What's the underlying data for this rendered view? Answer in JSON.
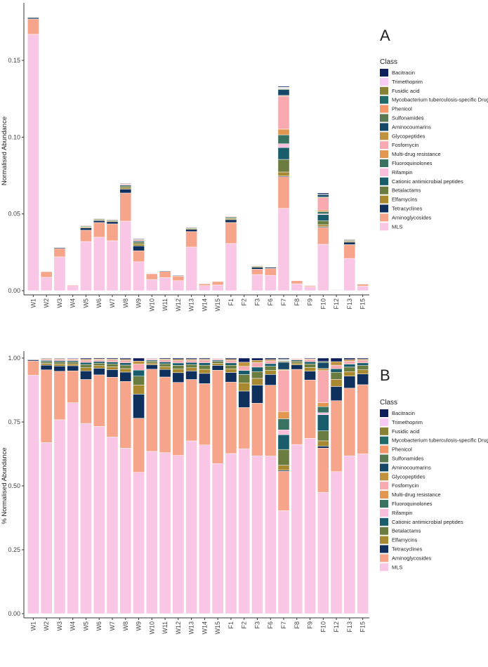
{
  "chart_data": [
    {
      "panel": "A",
      "type": "bar",
      "stacked": true,
      "ylabel": "Normalised Abundance",
      "ylim": [
        0,
        0.18
      ],
      "yticks": [
        "0.00",
        "0.05",
        "0.10",
        "0.15"
      ],
      "ytick_values": [
        0,
        0.05,
        0.1,
        0.15
      ],
      "normalize": false,
      "grid": false,
      "legend_placement": "right"
    },
    {
      "panel": "B",
      "type": "bar",
      "stacked": true,
      "ylabel": "% Normalised Abundance",
      "ylim": [
        0,
        1
      ],
      "yticks": [
        "0.00",
        "0.25",
        "0.50",
        "0.75",
        "1.00"
      ],
      "ytick_values": [
        0,
        0.25,
        0.5,
        0.75,
        1.0
      ],
      "normalize": true,
      "grid": false,
      "legend_placement": "right"
    }
  ],
  "categories": [
    "W1",
    "W2",
    "W3",
    "W4",
    "W5",
    "W6",
    "W7",
    "W8",
    "W9",
    "W10",
    "W11",
    "W12",
    "W13",
    "W14",
    "W15",
    "F1",
    "F2",
    "F3",
    "F6",
    "F7",
    "F8",
    "F9",
    "F10",
    "F12",
    "F13",
    "F15"
  ],
  "legend": {
    "title": "Class",
    "order": [
      "Bacitracin",
      "Trimethoprim",
      "Fusidic acid",
      "Mycobacterium tuberculosis-specific Drug",
      "Phenicol",
      "Sulfonamides",
      "Aminocoumarins",
      "Glycopeptides",
      "Fosfomycin",
      "Multi-drug resistance",
      "Fluoroquinolones",
      "Rifampin",
      "Cationic antimicrobial peptides",
      "Betalactams",
      "Elfamycins",
      "Tetracyclines",
      "Aminoglycosides",
      "MLS"
    ]
  },
  "series": [
    {
      "name": "MLS",
      "color": "#f9c6e5",
      "values": [
        0.167,
        0.0087,
        0.022,
        0.0033,
        0.032,
        0.0348,
        0.0325,
        0.0453,
        0.0188,
        0.0073,
        0.0085,
        0.0065,
        0.0284,
        0.0033,
        0.0037,
        0.0307,
        0.0004,
        0.0105,
        0.01,
        0.0536,
        0.0045,
        0.0024,
        0.0302,
        0.0004,
        0.021,
        0.003
      ]
    },
    {
      "name": "Aminoglycosides",
      "color": "#f6a58a",
      "values": [
        0.01,
        0.0037,
        0.0055,
        0.0005,
        0.0074,
        0.0096,
        0.011,
        0.0183,
        0.0072,
        0.0037,
        0.004,
        0.003,
        0.0101,
        0.0012,
        0.0023,
        0.0137,
        0.0001,
        0.0035,
        0.0045,
        0.0206,
        0.002,
        0.0008,
        0.011,
        0.0002,
        0.009,
        0.0013
      ]
    },
    {
      "name": "Tetracyclines",
      "color": "#0f2f5c",
      "values": [
        0.0008,
        0.00024,
        0.0006,
        8e-05,
        0.00144,
        0.00124,
        0.0014,
        0.00256,
        0.0032,
        0.0002,
        0.0004,
        0.0004,
        0.0014,
        0.0002,
        0.00012,
        0.00184,
        4e-05,
        0.0012,
        0.00068,
        0.0005,
        0.00012,
        0.00012,
        0.0005,
        4e-05,
        0.0016,
        0.0002
      ]
    },
    {
      "name": "Elfamycins",
      "color": "#a8892f",
      "values": [
        0.0003,
        9e-05,
        0.00023,
        3e-05,
        0.00054,
        0.00047,
        0.00053,
        0.00096,
        0.0012,
        8e-05,
        0.00015,
        0.00015,
        0.00053,
        8e-05,
        5e-05,
        0.00069,
        2e-05,
        0.00045,
        0.00026,
        0.0026,
        5e-05,
        5e-05,
        0.0013,
        2e-05,
        0.0006,
        8e-05
      ]
    },
    {
      "name": "Betalactams",
      "color": "#6a7c3f",
      "values": [
        0.0003,
        9e-05,
        0.00023,
        3e-05,
        0.00054,
        0.00047,
        0.00053,
        0.00096,
        0.0012,
        8e-05,
        0.00015,
        0.00015,
        0.00053,
        8e-05,
        5e-05,
        0.00069,
        2e-05,
        0.00045,
        0.00026,
        0.0082,
        5e-05,
        5e-05,
        0.0025,
        2e-05,
        0.0006,
        8e-05
      ]
    },
    {
      "name": "Cationic antimicrobial peptides",
      "color": "#195c6c",
      "values": [
        0.0002,
        6e-05,
        0.00015,
        2e-05,
        0.00036,
        0.00031,
        0.00035,
        0.00064,
        0.0008,
        5e-05,
        0.0001,
        0.0001,
        0.00035,
        5e-05,
        3e-05,
        0.00046,
        1e-05,
        0.0003,
        0.00017,
        0.0077,
        3e-05,
        3e-05,
        0.004,
        1e-05,
        0.0004,
        5e-05
      ]
    },
    {
      "name": "Rifampin",
      "color": "#f8bedc",
      "values": [
        0,
        0,
        0,
        0,
        0,
        0,
        0,
        0,
        0,
        0,
        0,
        0,
        0,
        0,
        0,
        0,
        0,
        0,
        0,
        0.0025,
        0,
        0,
        0.0005,
        0,
        0,
        0
      ]
    },
    {
      "name": "Fluoroquinolones",
      "color": "#3a7262",
      "values": [
        0,
        0,
        0,
        0,
        0,
        0,
        0,
        0,
        0,
        0,
        0,
        0,
        0,
        0,
        0,
        0,
        0,
        0,
        0,
        0.0058,
        0,
        0,
        0.0015,
        0,
        0,
        0
      ]
    },
    {
      "name": "Multi-drug resistance",
      "color": "#e2964f",
      "values": [
        0,
        0,
        0,
        0,
        0,
        0,
        0,
        0,
        0,
        0,
        0,
        0,
        0,
        0,
        0,
        0,
        0,
        0,
        0,
        0.0037,
        0,
        0,
        0.001,
        0,
        0,
        0
      ]
    },
    {
      "name": "Fosfomycin",
      "color": "#f9aab1",
      "values": [
        0.0002,
        6e-05,
        0.00015,
        2e-05,
        0.00036,
        0.00031,
        0.00035,
        0.00064,
        0.0008,
        5e-05,
        0.0001,
        0.0001,
        0.00035,
        5e-05,
        3e-05,
        0.00046,
        1e-05,
        0.0003,
        0.00017,
        0.0215,
        3e-05,
        3e-05,
        0.008,
        1e-05,
        0.0004,
        5e-05
      ]
    },
    {
      "name": "Glycopeptides",
      "color": "#c0923d",
      "values": [
        0.0001,
        3e-05,
        7e-05,
        1e-05,
        0.00018,
        0.00016,
        0.00018,
        0.00032,
        0.0004,
        2e-05,
        5e-05,
        5e-05,
        0.00018,
        2e-05,
        1e-05,
        0.00023,
        1e-05,
        0.00015,
        9e-05,
        0.0005,
        1e-05,
        1e-05,
        0.0005,
        1e-05,
        0.0002,
        2e-05
      ]
    },
    {
      "name": "Aminocoumarins",
      "color": "#154766",
      "values": [
        0,
        0,
        0,
        0,
        0,
        0,
        0,
        0,
        0,
        0,
        0,
        0,
        0,
        0,
        0,
        0,
        0,
        0,
        0,
        0.0037,
        0,
        0,
        0.0015,
        0,
        0,
        0
      ]
    },
    {
      "name": "Sulfonamides",
      "color": "#577a50",
      "values": [
        0,
        0,
        0,
        0,
        0,
        0,
        0,
        0,
        0,
        0,
        0,
        0,
        0,
        0,
        0,
        0,
        0,
        0,
        0,
        0.0005,
        0,
        0,
        0.0003,
        0,
        0,
        0
      ]
    },
    {
      "name": "Phenicol",
      "color": "#f4956a",
      "values": [
        0,
        0,
        0,
        0,
        0,
        0,
        0,
        0,
        0,
        0,
        0,
        0,
        0,
        0,
        0,
        0,
        0,
        0,
        0,
        0.0003,
        0,
        0,
        0,
        0,
        0,
        0
      ]
    },
    {
      "name": "Mycobacterium tuberculosis-specific Drug",
      "color": "#216a6a",
      "values": [
        0,
        0,
        0,
        0,
        0,
        0,
        0,
        0,
        0,
        0,
        0,
        0,
        0,
        0,
        0,
        0,
        0,
        0,
        0,
        0.0003,
        0,
        0,
        0,
        0,
        0,
        0
      ]
    },
    {
      "name": "Fusidic acid",
      "color": "#878035",
      "values": [
        0,
        0,
        0,
        0,
        0,
        0,
        0,
        0,
        0,
        0,
        0,
        0,
        0,
        0,
        0,
        0,
        0,
        0,
        0,
        0.0003,
        0,
        0,
        0,
        0,
        0,
        0
      ]
    },
    {
      "name": "Trimethoprim",
      "color": "#f9c9f5",
      "values": [
        0,
        0,
        0,
        0,
        0,
        0,
        0,
        0,
        0,
        0,
        0,
        0,
        0,
        0,
        0,
        0,
        0,
        0,
        0,
        0.0002,
        0,
        0,
        0,
        0,
        0,
        0
      ]
    },
    {
      "name": "Bacitracin",
      "color": "#0d1f5c",
      "values": [
        0.0001,
        3e-05,
        7e-05,
        1e-05,
        0.00018,
        0.00016,
        0.00018,
        0.00032,
        0.0004,
        2e-05,
        5e-05,
        5e-05,
        0.00018,
        2e-05,
        1e-05,
        0.00023,
        1e-05,
        0.00015,
        9e-05,
        0.0006,
        1e-05,
        1e-05,
        0.0008,
        1e-05,
        0.0002,
        2e-05
      ]
    }
  ]
}
